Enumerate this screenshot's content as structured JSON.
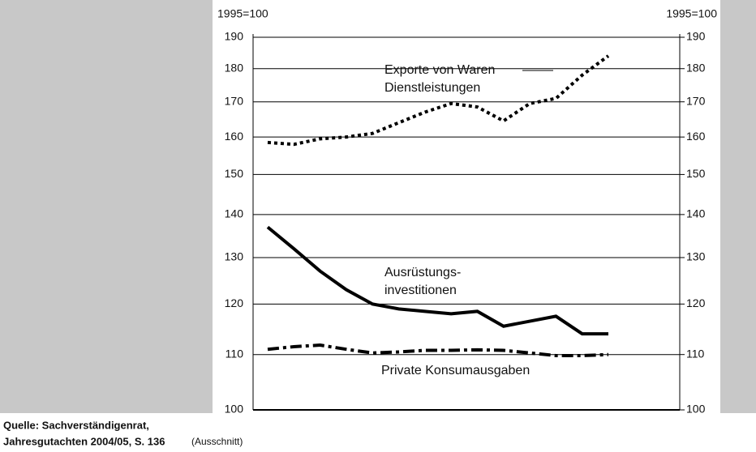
{
  "chart_data": {
    "type": "line",
    "yscale": "log",
    "ylabel": "1995=100",
    "y2label": "1995=100",
    "categories": [
      null,
      null,
      null,
      null,
      null,
      null,
      null,
      null,
      null,
      null,
      null,
      null,
      null,
      null
    ],
    "series": [
      {
        "name": [
          "Exporte von Waren",
          "Dienstleistungen"
        ],
        "color": "#000",
        "style": "dotted",
        "values": [
          158.5,
          158,
          159.5,
          160,
          161,
          164,
          167,
          169.5,
          168.5,
          164.5,
          169.5,
          171,
          178,
          184
        ]
      },
      {
        "name": [
          "Ausrüstungs-",
          "investitionen"
        ],
        "color": "#000",
        "style": "solid",
        "values": [
          137,
          132,
          127,
          123,
          120,
          119,
          118.5,
          118,
          118.5,
          115.5,
          116.5,
          117.5,
          114,
          114
        ]
      },
      {
        "name": [
          "Private Konsumausgaben"
        ],
        "color": "#000",
        "style": "dashdot",
        "values": [
          111,
          111.5,
          111.8,
          111,
          110.3,
          110.5,
          110.8,
          110.8,
          110.9,
          110.8,
          110.3,
          109.8,
          109.8,
          110
        ]
      }
    ],
    "ylim": [
      100,
      190
    ],
    "yticks": [
      100,
      110,
      120,
      130,
      140,
      150,
      160,
      170,
      180,
      190
    ],
    "y2lim": [
      100,
      190
    ],
    "y2ticks": [
      100,
      110,
      120,
      130,
      140,
      150,
      160,
      170,
      180,
      190
    ],
    "grid": true,
    "source": [
      "Quelle: Sachverständigenrat,",
      "Jahresgutachten  2004/05, S. 136"
    ],
    "source_note": "(Ausschnitt)"
  }
}
